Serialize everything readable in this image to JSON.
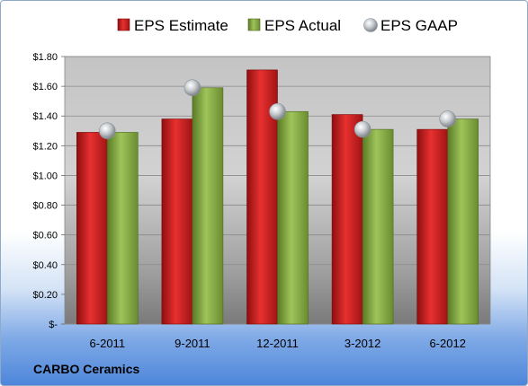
{
  "company": "CARBO Ceramics",
  "chart_data": {
    "type": "bar",
    "categories": [
      "6-2011",
      "9-2011",
      "12-2011",
      "3-2012",
      "6-2012"
    ],
    "series": [
      {
        "name": "EPS Estimate",
        "kind": "bar",
        "color": "#d42a2a",
        "values": [
          1.29,
          1.38,
          1.71,
          1.41,
          1.31
        ]
      },
      {
        "name": "EPS Actual",
        "kind": "bar",
        "color": "#8cb04a",
        "values": [
          1.29,
          1.59,
          1.43,
          1.31,
          1.38
        ]
      },
      {
        "name": "EPS GAAP",
        "kind": "marker",
        "color": "#c0c4c8",
        "values": [
          1.3,
          1.59,
          1.43,
          1.31,
          1.38
        ]
      }
    ],
    "ylim": [
      0,
      1.8
    ],
    "yticks": [
      {
        "value": 0,
        "label": "$-"
      },
      {
        "value": 0.2,
        "label": "$0.20"
      },
      {
        "value": 0.4,
        "label": "$0.40"
      },
      {
        "value": 0.6,
        "label": "$0.60"
      },
      {
        "value": 0.8,
        "label": "$0.80"
      },
      {
        "value": 1.0,
        "label": "$1.00"
      },
      {
        "value": 1.2,
        "label": "$1.20"
      },
      {
        "value": 1.4,
        "label": "$1.40"
      },
      {
        "value": 1.6,
        "label": "$1.60"
      },
      {
        "value": 1.8,
        "label": "$1.80"
      }
    ],
    "grid": true,
    "legend_position": "top",
    "xlabel": "",
    "ylabel": ""
  }
}
